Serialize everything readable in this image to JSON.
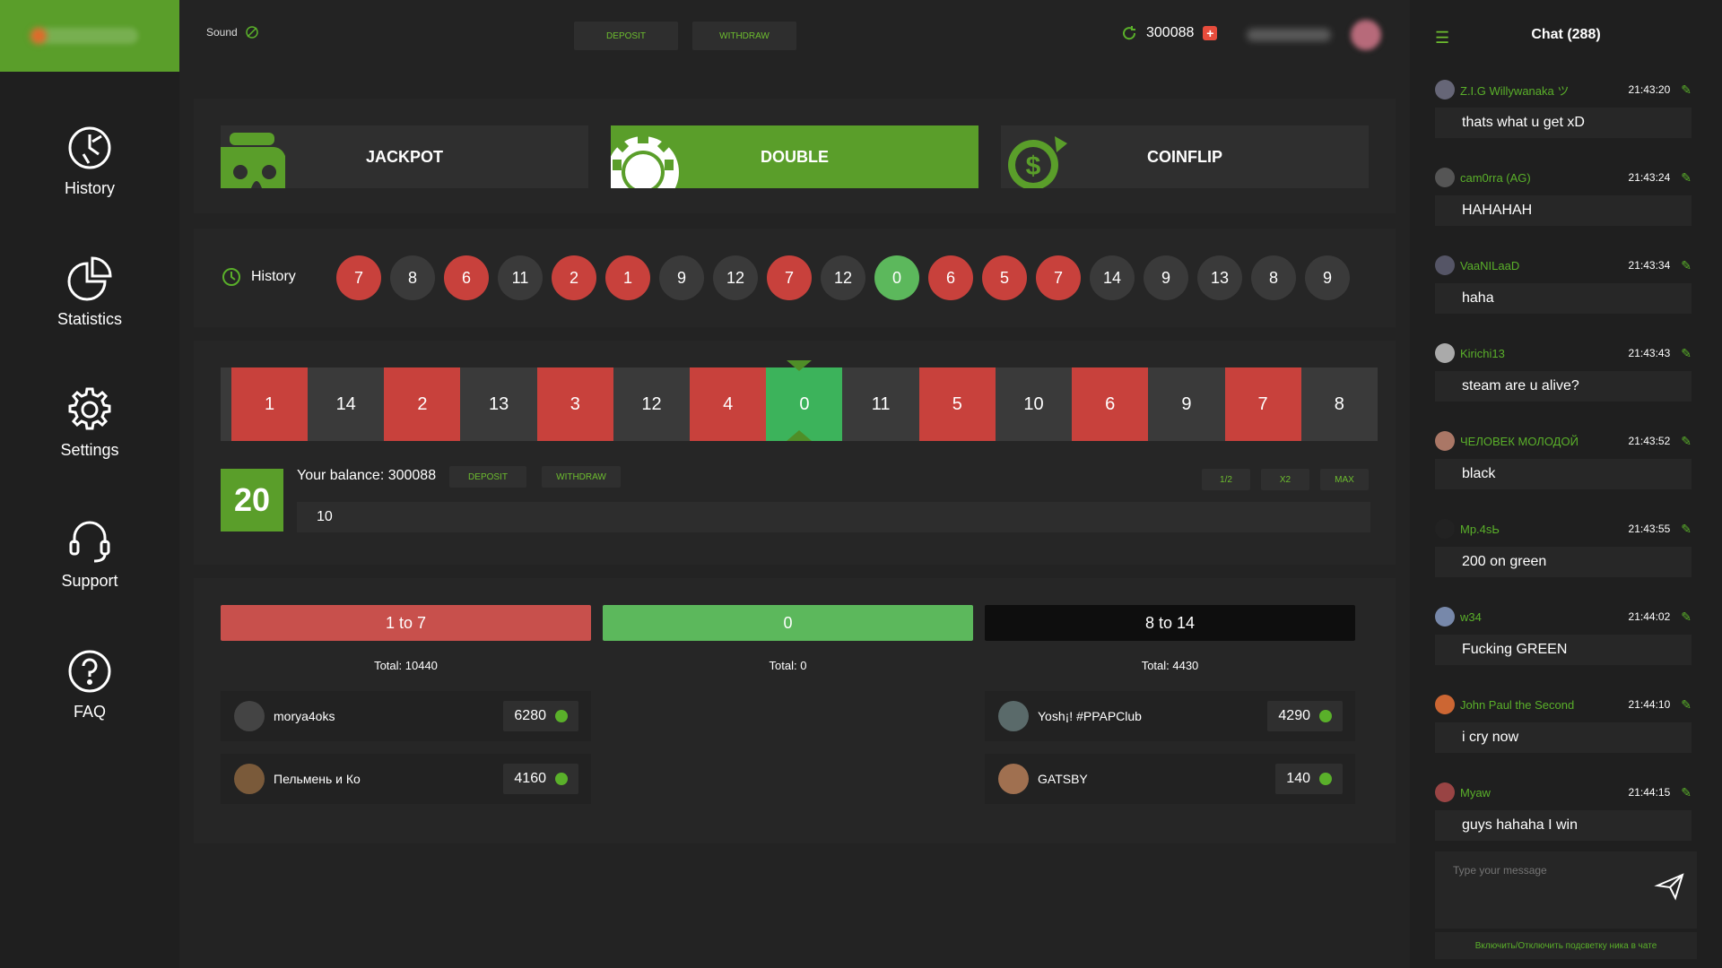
{
  "colors": {
    "accent": "#5a9e2a",
    "red": "#c8413c",
    "black": "#3a3a3a",
    "green": "#5cb85c"
  },
  "sidebar": {
    "items": [
      {
        "label": "History",
        "icon": "history-icon"
      },
      {
        "label": "Statistics",
        "icon": "pie-chart-icon"
      },
      {
        "label": "Settings",
        "icon": "gear-icon"
      },
      {
        "label": "Support",
        "icon": "headset-icon"
      },
      {
        "label": "FAQ",
        "icon": "question-icon"
      }
    ]
  },
  "topbar": {
    "sound_label": "Sound",
    "deposit_label": "DEPOSIT",
    "withdraw_label": "WITHDRAW",
    "balance": "300088"
  },
  "games": [
    {
      "label": "JACKPOT",
      "active": false
    },
    {
      "label": "DOUBLE",
      "active": true
    },
    {
      "label": "COINFLIP",
      "active": false
    }
  ],
  "history": {
    "label": "History",
    "results": [
      {
        "n": "7",
        "c": "red"
      },
      {
        "n": "8",
        "c": "black"
      },
      {
        "n": "6",
        "c": "red"
      },
      {
        "n": "11",
        "c": "black"
      },
      {
        "n": "2",
        "c": "red"
      },
      {
        "n": "1",
        "c": "red"
      },
      {
        "n": "9",
        "c": "black"
      },
      {
        "n": "12",
        "c": "black"
      },
      {
        "n": "7",
        "c": "red"
      },
      {
        "n": "12",
        "c": "black"
      },
      {
        "n": "0",
        "c": "green"
      },
      {
        "n": "6",
        "c": "red"
      },
      {
        "n": "5",
        "c": "red"
      },
      {
        "n": "7",
        "c": "red"
      },
      {
        "n": "14",
        "c": "black"
      },
      {
        "n": "9",
        "c": "black"
      },
      {
        "n": "13",
        "c": "black"
      },
      {
        "n": "8",
        "c": "black"
      },
      {
        "n": "9",
        "c": "black"
      }
    ]
  },
  "roulette": {
    "strip": [
      {
        "n": "1",
        "c": "red"
      },
      {
        "n": "14",
        "c": "black"
      },
      {
        "n": "2",
        "c": "red"
      },
      {
        "n": "13",
        "c": "black"
      },
      {
        "n": "3",
        "c": "red"
      },
      {
        "n": "12",
        "c": "black"
      },
      {
        "n": "4",
        "c": "red"
      },
      {
        "n": "0",
        "c": "green"
      },
      {
        "n": "11",
        "c": "black"
      },
      {
        "n": "5",
        "c": "red"
      },
      {
        "n": "10",
        "c": "black"
      },
      {
        "n": "6",
        "c": "red"
      },
      {
        "n": "9",
        "c": "black"
      },
      {
        "n": "7",
        "c": "red"
      },
      {
        "n": "8",
        "c": "black"
      }
    ],
    "timer": "20",
    "balance_text": "Your balance: 300088",
    "deposit_label": "DEPOSIT",
    "withdraw_label": "WITHDRAW",
    "half_label": "1/2",
    "double_label": "x2",
    "max_label": "MAX",
    "bet_value": "10"
  },
  "bets": {
    "red": {
      "label": "1 to 7",
      "total": "Total: 10440",
      "players": [
        {
          "name": "morya4oks",
          "amount": "6280"
        },
        {
          "name": "Пельмень и Ко",
          "amount": "4160"
        }
      ]
    },
    "green": {
      "label": "0",
      "total": "Total: 0",
      "players": []
    },
    "black": {
      "label": "8 to 14",
      "total": "Total: 4430",
      "players": [
        {
          "name": "Yosh¡! #PPAPClub",
          "amount": "4290"
        },
        {
          "name": "GATSBY",
          "amount": "140"
        }
      ]
    }
  },
  "chat": {
    "title": "Chat (288)",
    "messages": [
      {
        "name": "Z.I.G Willywanaka ツ",
        "time": "21:43:20",
        "text": "thats what u get xD",
        "av": "#667"
      },
      {
        "name": "cam0rra   (AG)",
        "time": "21:43:24",
        "text": "HAHAHAH",
        "av": "#555"
      },
      {
        "name": "VaaNILaaD",
        "time": "21:43:34",
        "text": "haha",
        "av": "#556"
      },
      {
        "name": "Kirichi13",
        "time": "21:43:43",
        "text": "steam are u alive?",
        "av": "#aaa"
      },
      {
        "name": "ЧЕЛОВЕК МОЛОДОЙ",
        "time": "21:43:52",
        "text": "black",
        "av": "#a76"
      },
      {
        "name": "Мр.4sЬ",
        "time": "21:43:55",
        "text": "200 on green",
        "av": "#222"
      },
      {
        "name": "w34",
        "time": "21:44:02",
        "text": "Fucking GREEN",
        "av": "#78a"
      },
      {
        "name": "John Paul the Second",
        "time": "21:44:10",
        "text": "i cry now",
        "av": "#c63"
      },
      {
        "name": "Myaw",
        "time": "21:44:15",
        "text": "guys hahaha I win",
        "av": "#944"
      }
    ],
    "input_placeholder": "Type your message",
    "toggle_label": "Включить/Отключить подсветку ника в чате"
  }
}
